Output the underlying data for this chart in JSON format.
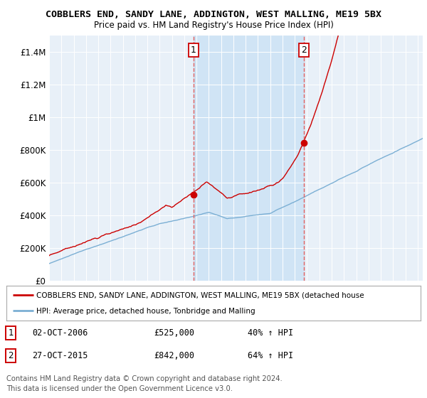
{
  "title": "COBBLERS END, SANDY LANE, ADDINGTON, WEST MALLING, ME19 5BX",
  "subtitle": "Price paid vs. HM Land Registry's House Price Index (HPI)",
  "ylim": [
    0,
    1500000
  ],
  "yticks": [
    0,
    200000,
    400000,
    600000,
    800000,
    1000000,
    1200000,
    1400000
  ],
  "ytick_labels": [
    "£0",
    "£200K",
    "£400K",
    "£600K",
    "£800K",
    "£1M",
    "£1.2M",
    "£1.4M"
  ],
  "hpi_color": "#7bafd4",
  "hpi_fill_color": "#ccdcee",
  "price_color": "#cc0000",
  "marker1_value": 525000,
  "marker1_date_str": "02-OCT-2006",
  "marker1_pct": "40%",
  "marker2_value": 842000,
  "marker2_date_str": "27-OCT-2015",
  "marker2_pct": "64%",
  "legend_line1": "COBBLERS END, SANDY LANE, ADDINGTON, WEST MALLING, ME19 5BX (detached house",
  "legend_line2": "HPI: Average price, detached house, Tonbridge and Malling",
  "footer1": "Contains HM Land Registry data © Crown copyright and database right 2024.",
  "footer2": "This data is licensed under the Open Government Licence v3.0.",
  "bg_color": "#ffffff",
  "plot_bg_color": "#e8f0f8",
  "grid_color": "#ffffff",
  "shade_color": "#d0e4f5",
  "dashed_line_color": "#e06060"
}
